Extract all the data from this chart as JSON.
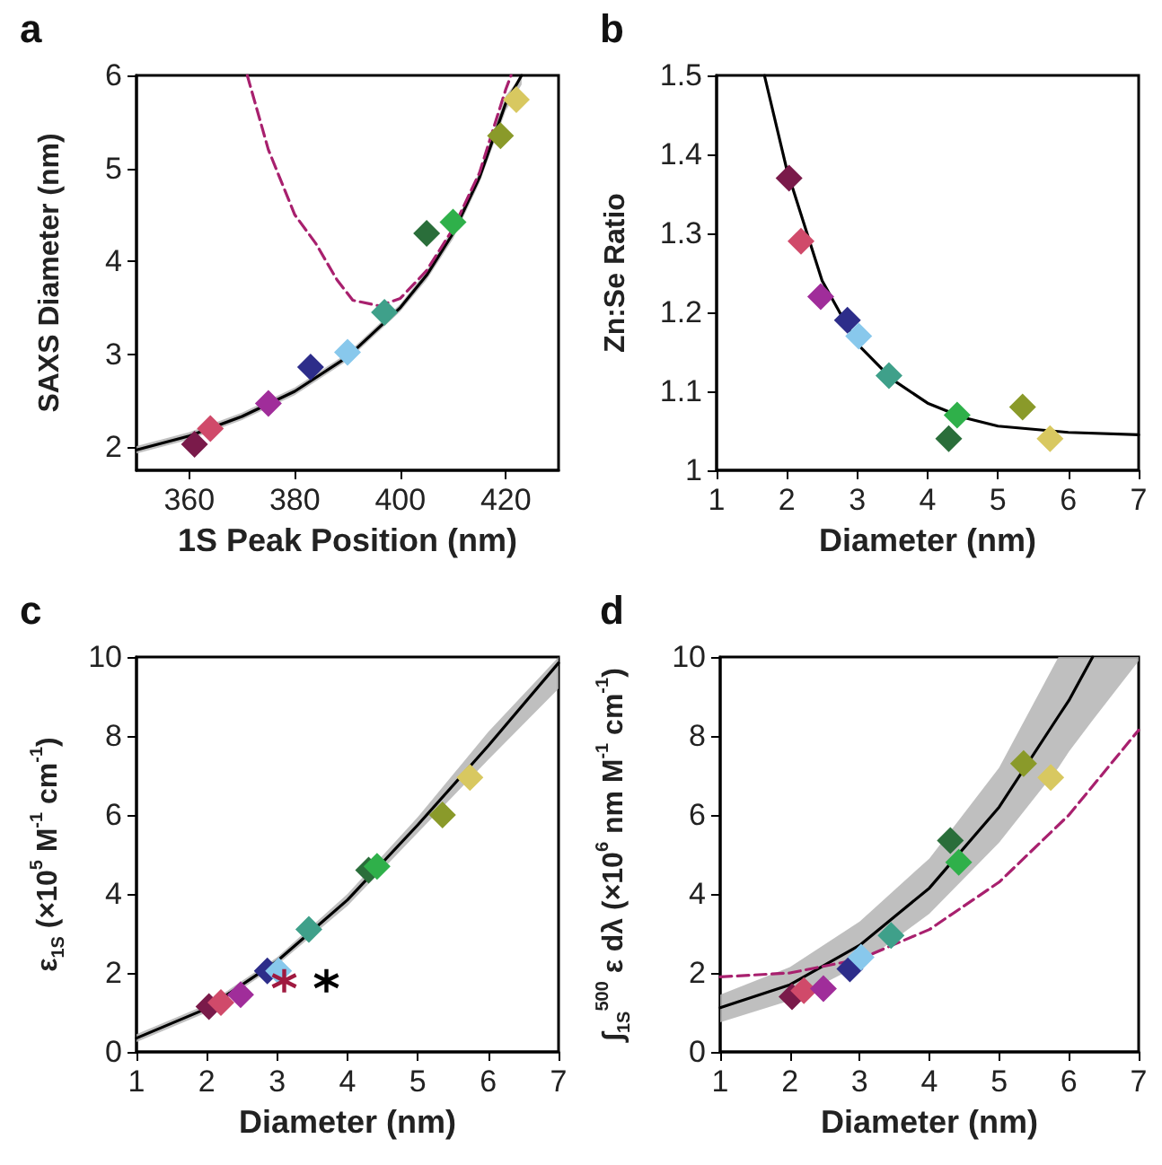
{
  "chart_data": [
    {
      "type": "scatter",
      "title": "a",
      "xlabel": "1S Peak Position (nm)",
      "ylabel": "SAXS Diameter (nm)",
      "xlim": [
        350,
        430
      ],
      "xticks": [
        360,
        380,
        400,
        420
      ],
      "ylim": [
        1.75,
        6
      ],
      "yticks": [
        2,
        3,
        4,
        5,
        6
      ],
      "series": [
        {
          "type": "line",
          "color": "#000000",
          "marker": "none",
          "x": [
            350,
            360,
            370,
            380,
            390,
            400,
            405,
            410,
            415,
            420,
            423
          ],
          "values": [
            1.97,
            2.12,
            2.33,
            2.6,
            2.97,
            3.5,
            3.85,
            4.3,
            4.9,
            5.7,
            6.0
          ],
          "lower": [
            1.93,
            2.08,
            2.29,
            2.56,
            2.93,
            3.46,
            3.8,
            4.24,
            4.84,
            5.62,
            5.9
          ],
          "upper": [
            2.01,
            2.16,
            2.37,
            2.64,
            3.01,
            3.54,
            3.9,
            4.36,
            4.96,
            5.78,
            6.0
          ]
        },
        {
          "type": "line",
          "color": "#a8206e",
          "marker": "none",
          "line_style": "dashed",
          "x": [
            371,
            375,
            380,
            384,
            388,
            391,
            396,
            400,
            405,
            410,
            415,
            420,
            421
          ],
          "values": [
            6.0,
            5.2,
            4.5,
            4.19,
            3.8,
            3.58,
            3.52,
            3.6,
            3.9,
            4.35,
            4.95,
            5.85,
            6.0
          ]
        },
        {
          "type": "scatter",
          "marker": "diamond",
          "x": [
            361,
            364,
            375,
            383,
            390,
            397,
            405,
            410,
            419,
            422
          ],
          "values": [
            2.03,
            2.2,
            2.47,
            2.86,
            3.02,
            3.45,
            4.3,
            4.42,
            5.35,
            5.74
          ],
          "colors": [
            "#7a1a4a",
            "#d04a6a",
            "#a02d9a",
            "#2d2d8a",
            "#88c8ec",
            "#3fa08a",
            "#2a6e3a",
            "#2fb04a",
            "#8a9a2a",
            "#d8c860"
          ]
        }
      ]
    },
    {
      "type": "scatter",
      "title": "b",
      "xlabel": "Diameter (nm)",
      "ylabel": "Zn:Se Ratio",
      "xlim": [
        1,
        7
      ],
      "xticks": [
        1,
        2,
        3,
        4,
        5,
        6,
        7
      ],
      "ylim": [
        1,
        1.5
      ],
      "yticks": [
        1,
        1.1,
        1.2,
        1.3,
        1.4,
        1.5
      ],
      "series": [
        {
          "type": "line",
          "color": "#000000",
          "marker": "none",
          "x": [
            1.68,
            2,
            2.5,
            3,
            3.5,
            4,
            4.5,
            5,
            6,
            7
          ],
          "values": [
            1.5,
            1.38,
            1.24,
            1.16,
            1.115,
            1.085,
            1.067,
            1.056,
            1.048,
            1.045
          ]
        },
        {
          "type": "scatter",
          "marker": "diamond",
          "x": [
            2.03,
            2.2,
            2.48,
            2.86,
            3.02,
            3.45,
            4.3,
            4.42,
            5.35,
            5.74
          ],
          "values": [
            1.37,
            1.29,
            1.22,
            1.19,
            1.17,
            1.12,
            1.04,
            1.07,
            1.08,
            1.04
          ],
          "colors": [
            "#7a1a4a",
            "#d04a6a",
            "#a02d9a",
            "#2d2d8a",
            "#88c8ec",
            "#3fa08a",
            "#2a6e3a",
            "#2fb04a",
            "#8a9a2a",
            "#d8c860"
          ]
        }
      ]
    },
    {
      "type": "scatter",
      "title": "c",
      "xlabel": "Diameter (nm)",
      "ylabel": "ε$_{1S}$ (×10$^{5}$ M$^{-1}$ cm$^{-1}$)",
      "xlim": [
        1,
        7
      ],
      "xticks": [
        1,
        2,
        3,
        4,
        5,
        6,
        7
      ],
      "ylim": [
        0,
        10
      ],
      "yticks": [
        0,
        2,
        4,
        6,
        8,
        10
      ],
      "series": [
        {
          "type": "line",
          "color": "#000000",
          "marker": "none",
          "x": [
            1,
            2,
            3,
            4,
            5,
            6,
            7
          ],
          "values": [
            0.35,
            1.1,
            2.3,
            3.85,
            5.75,
            7.75,
            9.85
          ],
          "lower": [
            0.25,
            1.0,
            2.2,
            3.7,
            5.55,
            7.4,
            9.2
          ],
          "upper": [
            0.45,
            1.2,
            2.4,
            4.0,
            5.95,
            8.1,
            10
          ]
        },
        {
          "type": "scatter",
          "marker": "diamond",
          "x": [
            2.03,
            2.2,
            2.48,
            2.86,
            3.02,
            3.45,
            4.3,
            4.42,
            5.35,
            5.74
          ],
          "values": [
            1.15,
            1.25,
            1.45,
            2.05,
            2.05,
            3.1,
            4.6,
            4.7,
            6.0,
            6.95
          ],
          "colors": [
            "#7a1a4a",
            "#d04a6a",
            "#a02d9a",
            "#2d2d8a",
            "#88c8ec",
            "#3fa08a",
            "#2a6e3a",
            "#2fb04a",
            "#8a9a2a",
            "#d8c860"
          ]
        },
        {
          "type": "scatter",
          "marker": "cross",
          "x": [
            3.1,
            3.7
          ],
          "values": [
            1.8,
            1.8
          ],
          "colors": [
            "#a01a40",
            "#000000"
          ]
        }
      ]
    },
    {
      "type": "scatter",
      "title": "d",
      "xlabel": "Diameter (nm)",
      "ylabel": "∫$_{1S}$$^{500}$ ε dλ (×10$^{6}$ nm M$^{-1}$ cm$^{-1}$)",
      "xlim": [
        1,
        7
      ],
      "xticks": [
        1,
        2,
        3,
        4,
        5,
        6,
        7
      ],
      "ylim": [
        0,
        10
      ],
      "yticks": [
        0,
        2,
        4,
        6,
        8,
        10
      ],
      "series": [
        {
          "type": "line",
          "color": "#000000",
          "marker": "none",
          "x": [
            1,
            2,
            3,
            4,
            5,
            5.85,
            6,
            6.34,
            7
          ],
          "values": [
            1.12,
            1.7,
            2.7,
            4.15,
            6.2,
            8.5,
            8.9,
            10,
            null
          ],
          "lower": [
            0.75,
            1.3,
            2.2,
            3.5,
            5.3,
            7.2,
            7.6,
            8.4,
            9.9
          ],
          "upper": [
            1.45,
            2.15,
            3.3,
            4.9,
            7.2,
            10,
            10,
            10,
            10
          ]
        },
        {
          "type": "line",
          "color": "#a8206e",
          "marker": "none",
          "line_style": "dashed",
          "x": [
            1,
            2,
            3,
            4,
            5,
            6,
            7
          ],
          "values": [
            1.9,
            2.0,
            2.35,
            3.1,
            4.3,
            6.0,
            8.15
          ]
        },
        {
          "type": "scatter",
          "marker": "diamond",
          "x": [
            2.03,
            2.2,
            2.48,
            2.86,
            3.02,
            3.45,
            4.3,
            4.42,
            5.35,
            5.74
          ],
          "values": [
            1.4,
            1.55,
            1.6,
            2.1,
            2.4,
            2.95,
            5.35,
            4.8,
            7.3,
            6.95
          ],
          "colors": [
            "#7a1a4a",
            "#d04a6a",
            "#a02d9a",
            "#2d2d8a",
            "#88c8ec",
            "#3fa08a",
            "#2a6e3a",
            "#2fb04a",
            "#8a9a2a",
            "#d8c860"
          ]
        }
      ]
    }
  ]
}
